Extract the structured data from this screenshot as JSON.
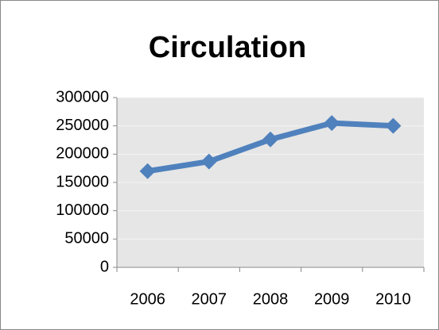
{
  "chart_data": {
    "type": "line",
    "title": "Circulation",
    "categories": [
      "2006",
      "2007",
      "2008",
      "2009",
      "2010"
    ],
    "values": [
      170000,
      187000,
      226000,
      255000,
      250000
    ],
    "color": "#4f81bd",
    "ylim": [
      0,
      300000
    ],
    "yticks": [
      0,
      50000,
      100000,
      150000,
      200000,
      250000,
      300000
    ],
    "grid": true
  }
}
